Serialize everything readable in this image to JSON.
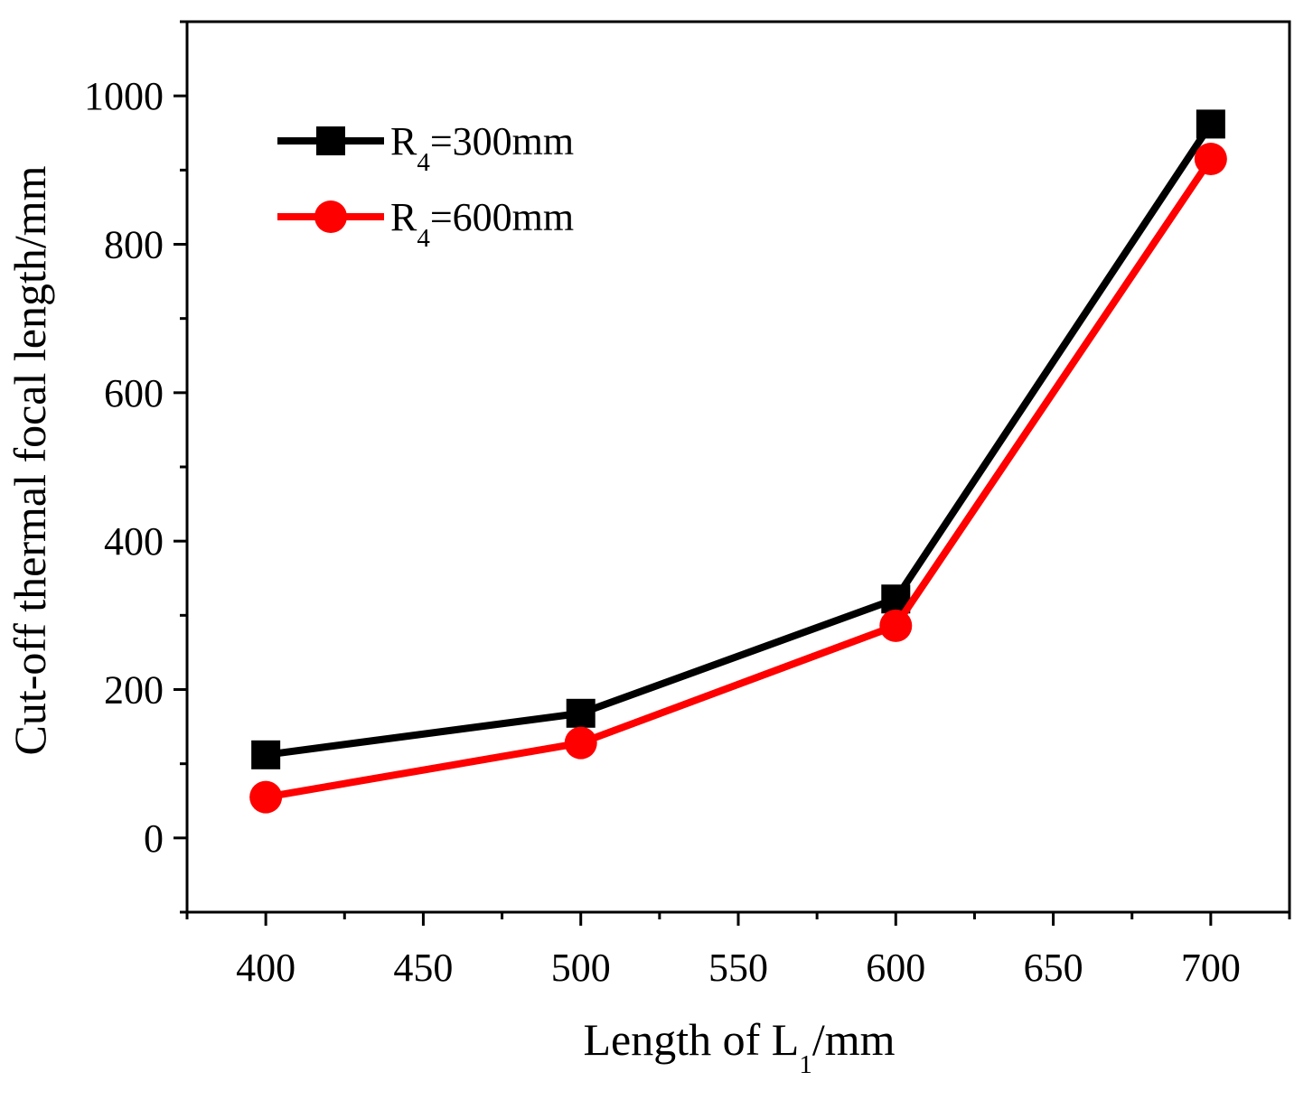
{
  "chart_data": {
    "type": "line",
    "title": "",
    "xlabel": {
      "main": "Length of L",
      "sub": "1",
      "tail": "/mm"
    },
    "ylabel": "Cut-off thermal focal length/mm",
    "xlim": [
      375,
      725
    ],
    "ylim": [
      -100,
      1100
    ],
    "x_ticks": [
      400,
      450,
      500,
      550,
      600,
      650,
      700
    ],
    "y_ticks": [
      0,
      200,
      400,
      600,
      800,
      1000
    ],
    "x_tick_labels": [
      "400",
      "450",
      "500",
      "550",
      "600",
      "650",
      "700"
    ],
    "y_tick_labels": [
      "0",
      "200",
      "400",
      "600",
      "800",
      "1000"
    ],
    "legend_position": "top-left",
    "series": [
      {
        "name": "R4=300mm",
        "label_main": "R",
        "label_sub": "4",
        "label_tail": "=300mm",
        "color": "#000000",
        "marker": "square",
        "x": [
          400,
          500,
          600,
          700
        ],
        "values": [
          112,
          168,
          322,
          962
        ]
      },
      {
        "name": "R4=600mm",
        "label_main": "R",
        "label_sub": "4",
        "label_tail": "=600mm",
        "color": "#ff0000",
        "marker": "circle",
        "x": [
          400,
          500,
          600,
          700
        ],
        "values": [
          55,
          128,
          286,
          915
        ]
      }
    ]
  }
}
